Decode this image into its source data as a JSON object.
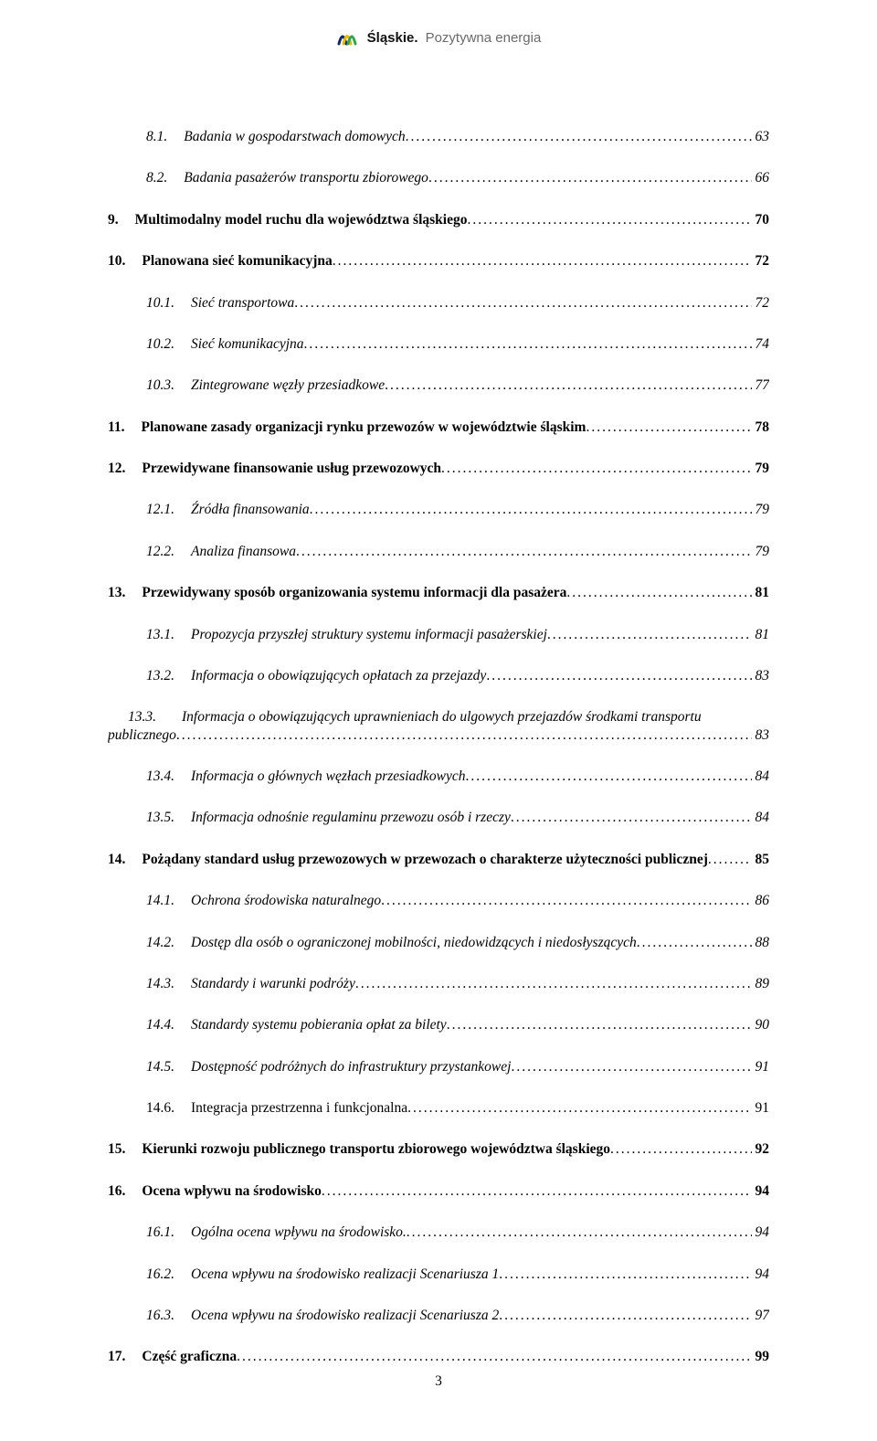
{
  "header": {
    "brand_bold": "Śląskie.",
    "brand_light": "Pozytywna energia",
    "logo_colors": [
      "#0a2a6b",
      "#f5b400",
      "#2aa84a"
    ]
  },
  "toc": [
    {
      "lvl": 1,
      "num": "8.1.",
      "title": "Badania w gospodarstwach domowych",
      "page": "63",
      "style": "italic"
    },
    {
      "lvl": 1,
      "num": "8.2.",
      "title": "Badania pasażerów transportu zbiorowego",
      "page": "66",
      "style": "italic"
    },
    {
      "lvl": 0,
      "num": "9.",
      "title": "Multimodalny model ruchu dla województwa śląskiego",
      "page": "70",
      "style": "bold"
    },
    {
      "lvl": 0,
      "num": "10.",
      "title": "Planowana sieć komunikacyjna",
      "page": "72",
      "style": "bold"
    },
    {
      "lvl": 1,
      "num": "10.1.",
      "title": "Sieć transportowa",
      "page": "72",
      "style": "italic"
    },
    {
      "lvl": 1,
      "num": "10.2.",
      "title": "Sieć komunikacyjna",
      "page": "74",
      "style": "italic"
    },
    {
      "lvl": 1,
      "num": "10.3.",
      "title": "Zintegrowane węzły przesiadkowe",
      "page": "77",
      "style": "italic"
    },
    {
      "lvl": 0,
      "num": "11.",
      "title": "Planowane zasady organizacji rynku przewozów w województwie śląskim",
      "page": "78",
      "style": "bold"
    },
    {
      "lvl": 0,
      "num": "12.",
      "title": "Przewidywane finansowanie usług przewozowych",
      "page": "79",
      "style": "bold"
    },
    {
      "lvl": 1,
      "num": "12.1.",
      "title": "Źródła finansowania",
      "page": "79",
      "style": "italic"
    },
    {
      "lvl": 1,
      "num": "12.2.",
      "title": "Analiza finansowa",
      "page": "79",
      "style": "italic"
    },
    {
      "lvl": 0,
      "num": "13.",
      "title": "Przewidywany sposób organizowania systemu informacji dla pasażera",
      "page": "81",
      "style": "bold"
    },
    {
      "lvl": 1,
      "num": "13.1.",
      "title": "Propozycja przyszłej struktury systemu informacji pasażerskiej",
      "page": "81",
      "style": "italic"
    },
    {
      "lvl": 1,
      "num": "13.2.",
      "title": "Informacja o obowiązujących opłatach za przejazdy",
      "page": "83",
      "style": "italic"
    },
    {
      "lvl": "1b",
      "num": "13.3.",
      "title_line1": "Informacja o obowiązujących uprawnieniach do ulgowych przejazdów środkami transportu",
      "title_line2": "publicznego",
      "page": "83",
      "style": "italic"
    },
    {
      "lvl": 1,
      "num": "13.4.",
      "title": "Informacja o głównych węzłach przesiadkowych",
      "page": "84",
      "style": "italic"
    },
    {
      "lvl": 1,
      "num": "13.5.",
      "title": "Informacja odnośnie regulaminu przewozu osób i rzeczy",
      "page": "84",
      "style": "italic"
    },
    {
      "lvl": 0,
      "num": "14.",
      "title": "Pożądany standard usług przewozowych w przewozach o charakterze użyteczności publicznej",
      "page": "85",
      "style": "bold"
    },
    {
      "lvl": 1,
      "num": "14.1.",
      "title": "Ochrona środowiska naturalnego",
      "page": "86",
      "style": "italic"
    },
    {
      "lvl": 1,
      "num": "14.2.",
      "title": "Dostęp dla osób o ograniczonej mobilności, niedowidzących i niedosłyszących",
      "page": "88",
      "style": "italic"
    },
    {
      "lvl": 1,
      "num": "14.3.",
      "title": "Standardy i warunki podróży",
      "page": "89",
      "style": "italic"
    },
    {
      "lvl": 1,
      "num": "14.4.",
      "title": "Standardy systemu pobierania opłat za bilety",
      "page": "90",
      "style": "italic"
    },
    {
      "lvl": 1,
      "num": "14.5.",
      "title": "Dostępność podróżnych do infrastruktury przystankowej",
      "page": "91",
      "style": "italic"
    },
    {
      "lvl": 1,
      "num": "14.6.",
      "title": "Integracja przestrzenna i funkcjonalna",
      "page": "91",
      "style": "plain"
    },
    {
      "lvl": 0,
      "num": "15.",
      "title": "Kierunki rozwoju publicznego transportu zbiorowego województwa śląskiego",
      "page": "92",
      "style": "bold"
    },
    {
      "lvl": 0,
      "num": "16.",
      "title": "Ocena wpływu na środowisko",
      "page": "94",
      "style": "bold"
    },
    {
      "lvl": 1,
      "num": "16.1.",
      "title": "Ogólna ocena wpływu na środowisko.",
      "page": "94",
      "style": "italic"
    },
    {
      "lvl": 1,
      "num": "16.2.",
      "title": "Ocena wpływu na środowisko realizacji Scenariusza 1",
      "page": "94",
      "style": "italic"
    },
    {
      "lvl": 1,
      "num": "16.3.",
      "title": "Ocena wpływu na środowisko realizacji Scenariusza 2",
      "page": "97",
      "style": "italic"
    },
    {
      "lvl": 0,
      "num": "17.",
      "title": "Część graficzna",
      "page": "99",
      "style": "bold"
    }
  ],
  "page_number": "3",
  "text_color": "#000000",
  "background_color": "#ffffff",
  "font_size_pt": 12
}
